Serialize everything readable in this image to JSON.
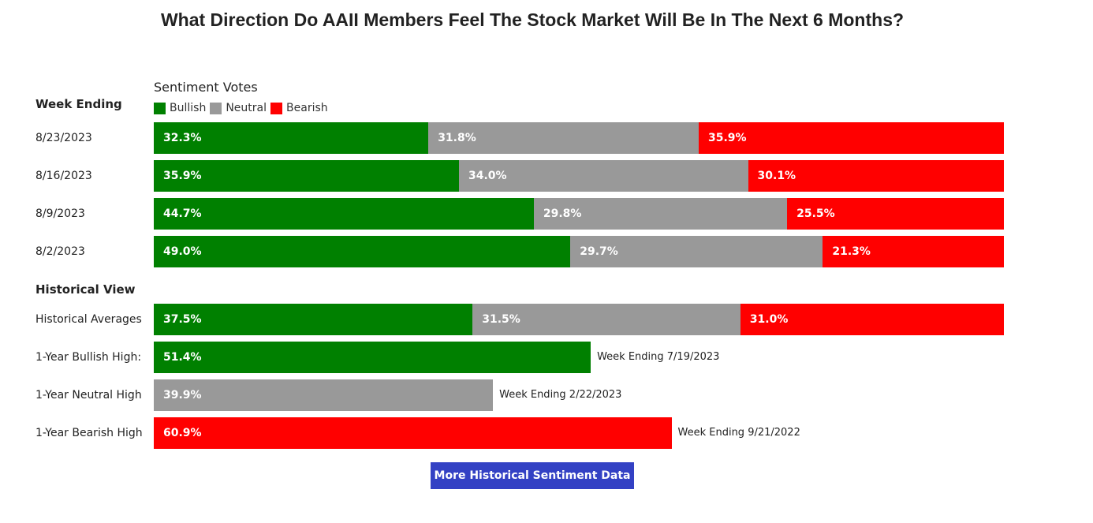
{
  "title": "What Direction Do AAII Members Feel The Stock Market Will Be In The Next 6 Months?",
  "votes_heading": "Sentiment Votes",
  "week_heading": "Week Ending",
  "historical_heading": "Historical View",
  "button_label": "More Historical Sentiment Data",
  "colors": {
    "bullish": "#008000",
    "neutral": "#999999",
    "bearish": "#ff0000",
    "button": "#3341c4"
  },
  "chart_data": {
    "type": "bar",
    "orientation": "horizontal",
    "stacked": true,
    "title": "What Direction Do AAII Members Feel The Stock Market Will Be In The Next 6 Months?",
    "legend": [
      "Bullish",
      "Neutral",
      "Bearish"
    ],
    "legend_position": "top-left",
    "xlim": [
      0,
      100
    ],
    "weekly": [
      {
        "label": "8/23/2023",
        "bullish": 32.3,
        "neutral": 31.8,
        "bearish": 35.9,
        "bullish_text": "32.3%",
        "neutral_text": "31.8%",
        "bearish_text": "35.9%"
      },
      {
        "label": "8/16/2023",
        "bullish": 35.9,
        "neutral": 34.0,
        "bearish": 30.1,
        "bullish_text": "35.9%",
        "neutral_text": "34.0%",
        "bearish_text": "30.1%"
      },
      {
        "label": "8/9/2023",
        "bullish": 44.7,
        "neutral": 29.8,
        "bearish": 25.5,
        "bullish_text": "44.7%",
        "neutral_text": "29.8%",
        "bearish_text": "25.5%"
      },
      {
        "label": "8/2/2023",
        "bullish": 49.0,
        "neutral": 29.7,
        "bearish": 21.3,
        "bullish_text": "49.0%",
        "neutral_text": "29.7%",
        "bearish_text": "21.3%"
      }
    ],
    "historical": [
      {
        "label": "Historical Averages",
        "bullish": 37.5,
        "neutral": 31.5,
        "bearish": 31.0,
        "bullish_text": "37.5%",
        "neutral_text": "31.5%",
        "bearish_text": "31.0%"
      }
    ],
    "highs": [
      {
        "label": "1-Year Bullish High:",
        "category": "bullish",
        "value": 51.4,
        "value_text": "51.4%",
        "note": "Week Ending 7/19/2023"
      },
      {
        "label": "1-Year Neutral High",
        "category": "neutral",
        "value": 39.9,
        "value_text": "39.9%",
        "note": "Week Ending 2/22/2023"
      },
      {
        "label": "1-Year Bearish High",
        "category": "bearish",
        "value": 60.9,
        "value_text": "60.9%",
        "note": "Week Ending 9/21/2022"
      }
    ]
  }
}
